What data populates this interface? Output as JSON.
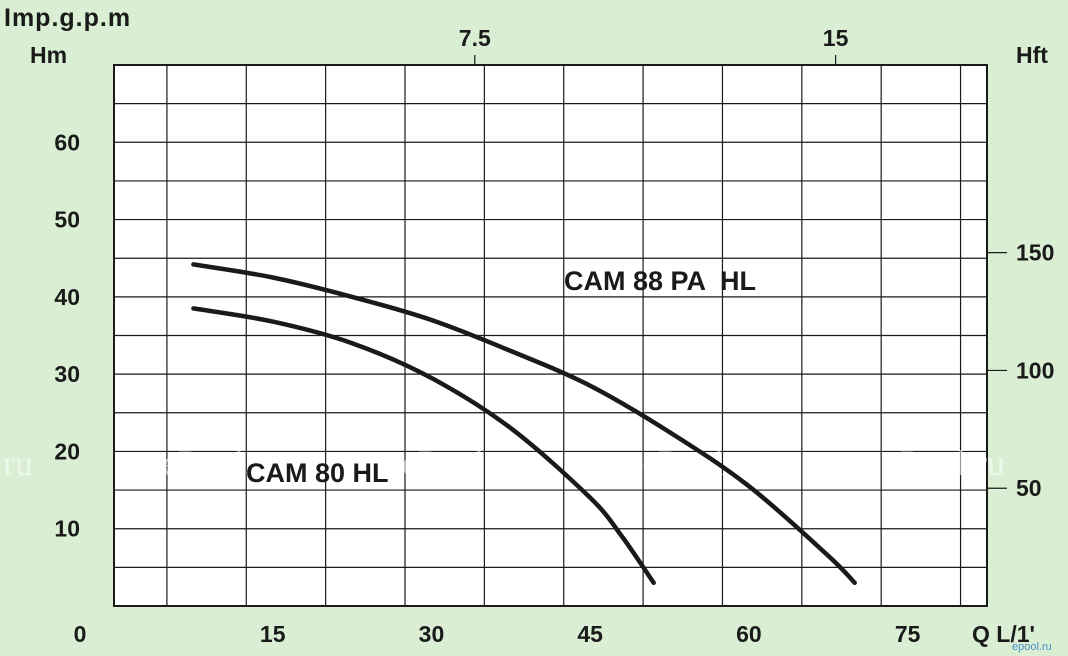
{
  "chart_data": {
    "type": "line",
    "x_axis": {
      "ticks": [
        "0",
        "15",
        "30",
        "45",
        "60",
        "75"
      ],
      "tick_values": [
        0,
        15,
        30,
        45,
        60,
        75
      ],
      "label": "Q  L/1'",
      "range": [
        0,
        82.5
      ]
    },
    "y_axis": {
      "label": "Hm",
      "ticks": [
        "10",
        "20",
        "30",
        "40",
        "50",
        "60"
      ],
      "tick_values": [
        10,
        20,
        30,
        40,
        50,
        60
      ],
      "range": [
        0,
        70
      ]
    },
    "top_axis": {
      "label": "Imp.g.p.m",
      "ticks": [
        "7.5",
        "15"
      ],
      "tick_values": [
        7.5,
        15
      ]
    },
    "right_axis": {
      "label": "Hft",
      "ticks": [
        "50",
        "100",
        "150"
      ],
      "tick_values": [
        50,
        100,
        150
      ]
    },
    "grid": true,
    "series": [
      {
        "name": "CAM 88 PA  HL",
        "points": [
          [
            7.5,
            44.2
          ],
          [
            15,
            42.5
          ],
          [
            22.5,
            40
          ],
          [
            30,
            37
          ],
          [
            37.5,
            33
          ],
          [
            45,
            28.5
          ],
          [
            52.5,
            22.5
          ],
          [
            60,
            15.5
          ],
          [
            67.5,
            6.5
          ],
          [
            70,
            3
          ]
        ]
      },
      {
        "name": "CAM 80 HL",
        "points": [
          [
            7.5,
            38.5
          ],
          [
            15,
            36.8
          ],
          [
            22.5,
            34
          ],
          [
            30,
            29.5
          ],
          [
            37.5,
            23
          ],
          [
            45,
            14
          ],
          [
            48,
            9
          ],
          [
            51,
            3
          ]
        ]
      }
    ],
    "watermark": "ePool.ru",
    "brand": "epool.ru"
  }
}
